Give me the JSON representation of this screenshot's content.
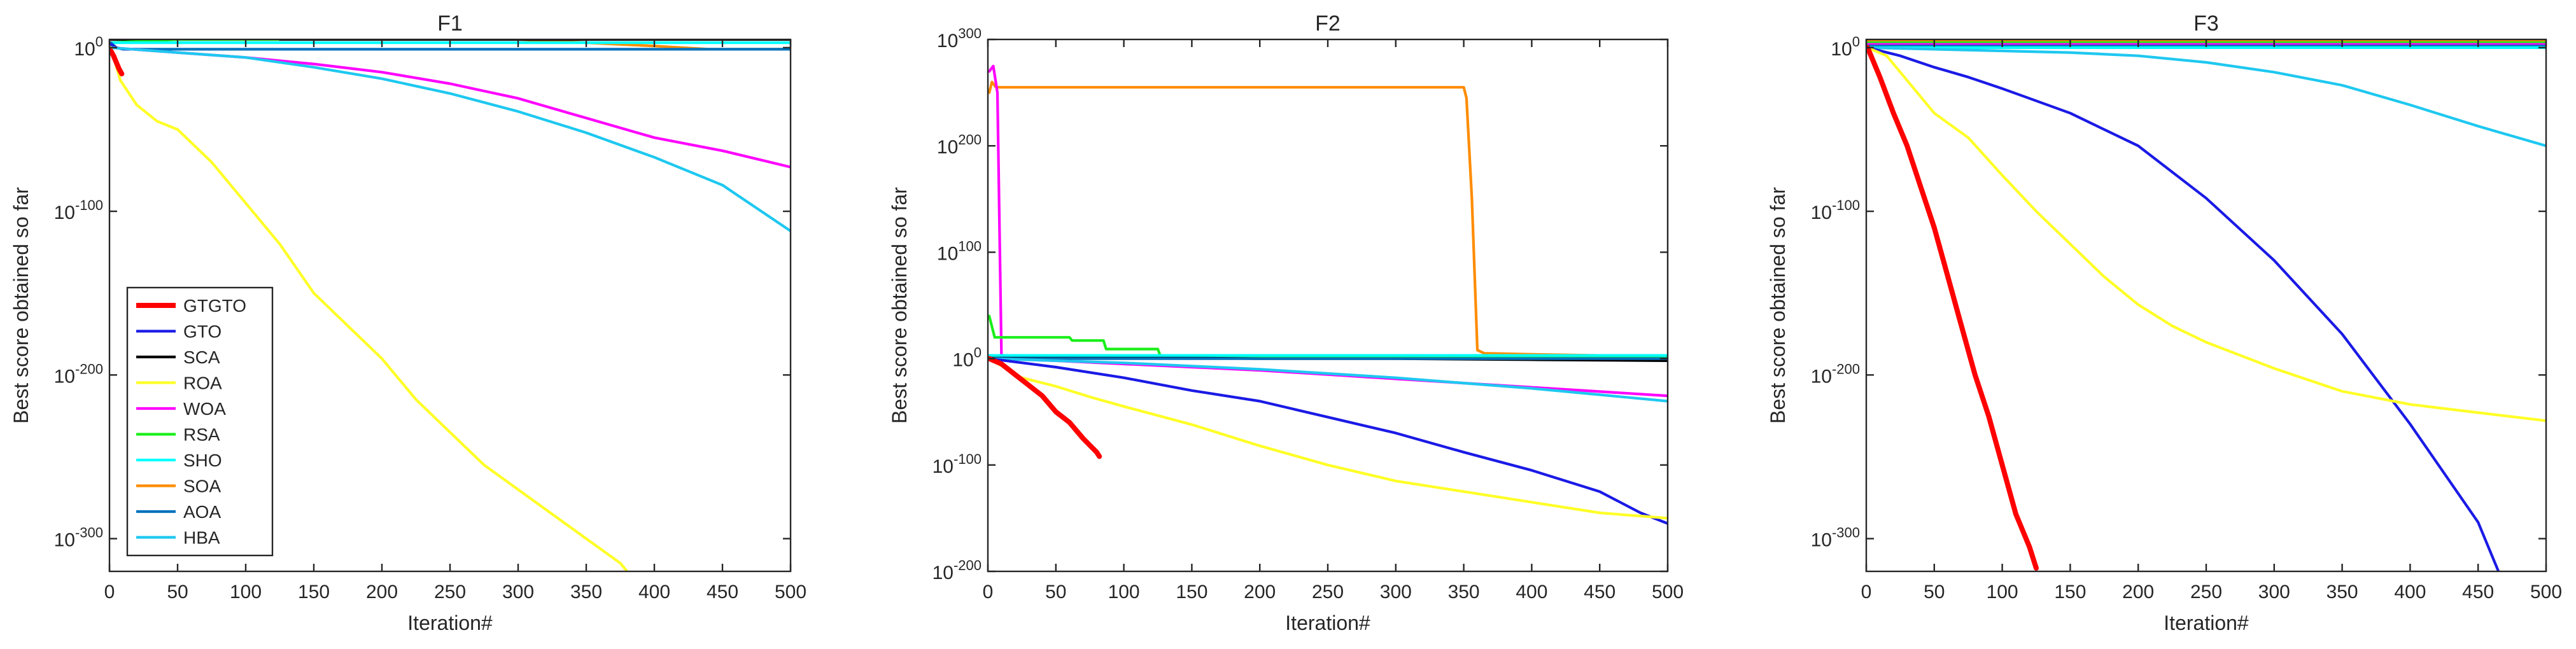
{
  "colors": {
    "GTGTO": "#ff0000",
    "GTO": "#1a1ae6",
    "SCA": "#000000",
    "ROA": "#ffff26",
    "WOA": "#ff00ff",
    "RSA": "#1aef1a",
    "SHO": "#00ffff",
    "SOA": "#ff8c00",
    "AOA": "#0072bd",
    "HBA": "#1ec8f0"
  },
  "legend": {
    "entries": [
      "GTGTO",
      "GTO",
      "SCA",
      "ROA",
      "WOA",
      "RSA",
      "SHO",
      "SOA",
      "AOA",
      "HBA"
    ]
  },
  "chart_data": [
    {
      "type": "line",
      "title": "F1",
      "xlabel": "Iteration#",
      "ylabel": "Best score obtained so far",
      "yscale": "log",
      "xlim": [
        0,
        500
      ],
      "ylim_log10": [
        -320,
        5
      ],
      "xticks": [
        0,
        50,
        100,
        150,
        200,
        250,
        300,
        350,
        400,
        450,
        500
      ],
      "yticks": [
        {
          "label": "10",
          "exp": "0",
          "exp10": 0
        },
        {
          "label": "10",
          "exp": "-100",
          "exp10": -100
        },
        {
          "label": "10",
          "exp": "-200",
          "exp10": -200
        },
        {
          "label": "10",
          "exp": "-300",
          "exp10": -300
        }
      ],
      "series": [
        {
          "name": "SOA",
          "x": [
            1,
            25,
            50,
            100,
            150,
            200,
            250,
            300,
            350,
            400,
            440,
            470,
            500
          ],
          "log10_y": [
            5,
            6,
            6.5,
            6.5,
            6.5,
            6.5,
            6,
            5,
            3,
            1,
            -1,
            -1,
            -1
          ]
        },
        {
          "name": "SCA",
          "x": [
            1,
            50,
            100,
            200,
            300,
            400,
            500
          ],
          "log10_y": [
            5,
            5,
            5,
            5,
            5,
            5,
            5
          ]
        },
        {
          "name": "RSA",
          "x": [
            1,
            50,
            100,
            124
          ],
          "log10_y": [
            3,
            5,
            5,
            5
          ]
        },
        {
          "name": "SHO",
          "x": [
            1,
            100,
            200,
            300,
            400,
            500
          ],
          "log10_y": [
            3,
            3,
            3,
            3,
            3,
            3
          ]
        },
        {
          "name": "AOA",
          "x": [
            1,
            5,
            10,
            100,
            200,
            300,
            400,
            500
          ],
          "log10_y": [
            3,
            0,
            -1,
            -1,
            -1,
            -1,
            -1,
            -1
          ]
        },
        {
          "name": "GTO",
          "x": [
            1,
            5,
            12,
            20
          ],
          "log10_y": [
            2,
            0,
            -1,
            -1
          ]
        },
        {
          "name": "WOA",
          "x": [
            1,
            50,
            100,
            150,
            200,
            250,
            300,
            350,
            400,
            450,
            500
          ],
          "log10_y": [
            0,
            -3,
            -6,
            -10,
            -15,
            -22,
            -31,
            -43,
            -55,
            -63,
            -73
          ]
        },
        {
          "name": "HBA",
          "x": [
            1,
            50,
            100,
            150,
            200,
            250,
            300,
            350,
            400,
            450,
            500
          ],
          "log10_y": [
            0,
            -3,
            -6,
            -12,
            -19,
            -28,
            -39,
            -52,
            -67,
            -84,
            -112
          ]
        },
        {
          "name": "ROA",
          "x": [
            1,
            8,
            20,
            35,
            50,
            75,
            100,
            125,
            150,
            175,
            200,
            225,
            250,
            275,
            300,
            325,
            350,
            375,
            380
          ],
          "log10_y": [
            0,
            -20,
            -35,
            -45,
            -50,
            -70,
            -95,
            -120,
            -150,
            -170,
            -190,
            -215,
            -235,
            -255,
            -270,
            -285,
            -300,
            -315,
            -320
          ]
        },
        {
          "name": "GTGTO",
          "x": [
            1,
            3,
            5,
            7,
            9
          ],
          "log10_y": [
            -2,
            -5,
            -9,
            -13,
            -16
          ]
        }
      ]
    },
    {
      "type": "line",
      "title": "F2",
      "xlabel": "Iteration#",
      "ylabel": "Best score obtained so far",
      "yscale": "log",
      "xlim": [
        0,
        500
      ],
      "ylim_log10": [
        -200,
        300
      ],
      "xticks": [
        0,
        50,
        100,
        150,
        200,
        250,
        300,
        350,
        400,
        450,
        500
      ],
      "yticks": [
        {
          "label": "10",
          "exp": "300",
          "exp10": 300
        },
        {
          "label": "10",
          "exp": "200",
          "exp10": 200
        },
        {
          "label": "10",
          "exp": "100",
          "exp10": 100
        },
        {
          "label": "10",
          "exp": "0",
          "exp10": 0
        },
        {
          "label": "10",
          "exp": "-100",
          "exp10": -100
        },
        {
          "label": "10",
          "exp": "-200",
          "exp10": -200
        }
      ],
      "series": [
        {
          "name": "SOA",
          "x": [
            1,
            3,
            6,
            350,
            352,
            356,
            360,
            365,
            400,
            450,
            500
          ],
          "log10_y": [
            250,
            260,
            255,
            255,
            245,
            150,
            8,
            5,
            4,
            3,
            2
          ]
        },
        {
          "name": "WOA",
          "x": [
            1,
            4,
            7,
            10,
            50,
            100,
            150,
            200,
            250,
            300,
            350,
            400,
            450,
            500
          ],
          "log10_y": [
            270,
            275,
            250,
            0,
            -2,
            -5,
            -8,
            -11,
            -15,
            -19,
            -23,
            -27,
            -31,
            -35
          ]
        },
        {
          "name": "RSA",
          "x": [
            1,
            5,
            10,
            60,
            62,
            85,
            87,
            125,
            127,
            200,
            300,
            500
          ],
          "log10_y": [
            40,
            20,
            20,
            20,
            17,
            17,
            9,
            9,
            2,
            2,
            2,
            2
          ]
        },
        {
          "name": "SCA",
          "x": [
            1,
            50,
            100,
            200,
            300,
            400,
            500
          ],
          "log10_y": [
            2,
            2,
            1,
            0,
            0,
            -1,
            -2
          ]
        },
        {
          "name": "AOA",
          "x": [
            1,
            100,
            200,
            300,
            400,
            500
          ],
          "log10_y": [
            0,
            0,
            0,
            0,
            0,
            0
          ]
        },
        {
          "name": "SHO",
          "x": [
            1,
            100,
            200,
            300,
            400,
            500
          ],
          "log10_y": [
            3,
            3,
            3,
            3,
            3,
            3
          ]
        },
        {
          "name": "HBA",
          "x": [
            1,
            50,
            100,
            150,
            200,
            250,
            300,
            350,
            400,
            450,
            500
          ],
          "log10_y": [
            0,
            -2,
            -4,
            -7,
            -10,
            -14,
            -18,
            -23,
            -28,
            -34,
            -40
          ]
        },
        {
          "name": "GTO",
          "x": [
            1,
            50,
            100,
            150,
            200,
            250,
            300,
            350,
            400,
            450,
            480,
            500
          ],
          "log10_y": [
            0,
            -8,
            -18,
            -30,
            -40,
            -55,
            -70,
            -88,
            -105,
            -125,
            -145,
            -155
          ]
        },
        {
          "name": "ROA",
          "x": [
            1,
            25,
            50,
            75,
            100,
            150,
            200,
            250,
            300,
            350,
            400,
            450,
            500
          ],
          "log10_y": [
            0,
            -18,
            -26,
            -36,
            -45,
            -62,
            -82,
            -100,
            -115,
            -125,
            -135,
            -145,
            -150
          ]
        },
        {
          "name": "GTGTO",
          "x": [
            1,
            10,
            20,
            30,
            40,
            50,
            60,
            70,
            80,
            82
          ],
          "log10_y": [
            0,
            -5,
            -15,
            -25,
            -35,
            -50,
            -60,
            -75,
            -88,
            -92
          ]
        }
      ]
    },
    {
      "type": "line",
      "title": "F3",
      "xlabel": "Iteration#",
      "ylabel": "Best score obtained so far",
      "yscale": "log",
      "xlim": [
        0,
        500
      ],
      "ylim_log10": [
        -320,
        5
      ],
      "xticks": [
        0,
        50,
        100,
        150,
        200,
        250,
        300,
        350,
        400,
        450,
        500
      ],
      "yticks": [
        {
          "label": "10",
          "exp": "0",
          "exp10": 0
        },
        {
          "label": "10",
          "exp": "-100",
          "exp10": -100
        },
        {
          "label": "10",
          "exp": "-200",
          "exp10": -200
        },
        {
          "label": "10",
          "exp": "-300",
          "exp10": -300
        }
      ],
      "series": [
        {
          "name": "SCA",
          "x": [
            1,
            100,
            200,
            300,
            400,
            500
          ],
          "log10_y": [
            5,
            5,
            5,
            5,
            5,
            5
          ]
        },
        {
          "name": "SOA",
          "x": [
            1,
            100,
            200,
            300,
            400,
            500
          ],
          "log10_y": [
            4,
            4,
            4,
            4,
            4,
            4
          ]
        },
        {
          "name": "RSA",
          "x": [
            1,
            100,
            200,
            300,
            400,
            500
          ],
          "log10_y": [
            3,
            3,
            3,
            3,
            3,
            3
          ]
        },
        {
          "name": "WOA",
          "x": [
            1,
            100,
            200,
            300,
            400,
            500
          ],
          "log10_y": [
            2,
            2,
            2,
            2,
            2,
            2
          ]
        },
        {
          "name": "AOA",
          "x": [
            1,
            100,
            200,
            300,
            400,
            500
          ],
          "log10_y": [
            1,
            1,
            1,
            1,
            1,
            1
          ]
        },
        {
          "name": "SHO",
          "x": [
            1,
            100,
            200,
            300,
            400,
            500
          ],
          "log10_y": [
            0,
            0,
            0,
            0,
            0,
            0
          ]
        },
        {
          "name": "HBA",
          "x": [
            1,
            50,
            100,
            150,
            200,
            250,
            300,
            350,
            400,
            450,
            500
          ],
          "log10_y": [
            0,
            -1,
            -2,
            -3,
            -5,
            -9,
            -15,
            -23,
            -35,
            -48,
            -60
          ]
        },
        {
          "name": "GTO",
          "x": [
            1,
            25,
            50,
            75,
            100,
            150,
            200,
            250,
            300,
            350,
            400,
            450,
            465
          ],
          "log10_y": [
            0,
            -5,
            -12,
            -18,
            -25,
            -40,
            -60,
            -92,
            -130,
            -175,
            -230,
            -290,
            -320
          ]
        },
        {
          "name": "ROA",
          "x": [
            1,
            15,
            30,
            50,
            75,
            100,
            125,
            150,
            175,
            200,
            225,
            250,
            300,
            350,
            400,
            450,
            500
          ],
          "log10_y": [
            0,
            -5,
            -20,
            -40,
            -55,
            -78,
            -100,
            -120,
            -140,
            -157,
            -170,
            -180,
            -196,
            -210,
            -218,
            -223,
            -228
          ]
        },
        {
          "name": "GTGTO",
          "x": [
            1,
            10,
            20,
            30,
            40,
            50,
            60,
            70,
            80,
            90,
            100,
            110,
            120,
            125
          ],
          "log10_y": [
            0,
            -18,
            -40,
            -60,
            -85,
            -110,
            -140,
            -170,
            -200,
            -225,
            -255,
            -285,
            -305,
            -318
          ]
        }
      ]
    }
  ]
}
